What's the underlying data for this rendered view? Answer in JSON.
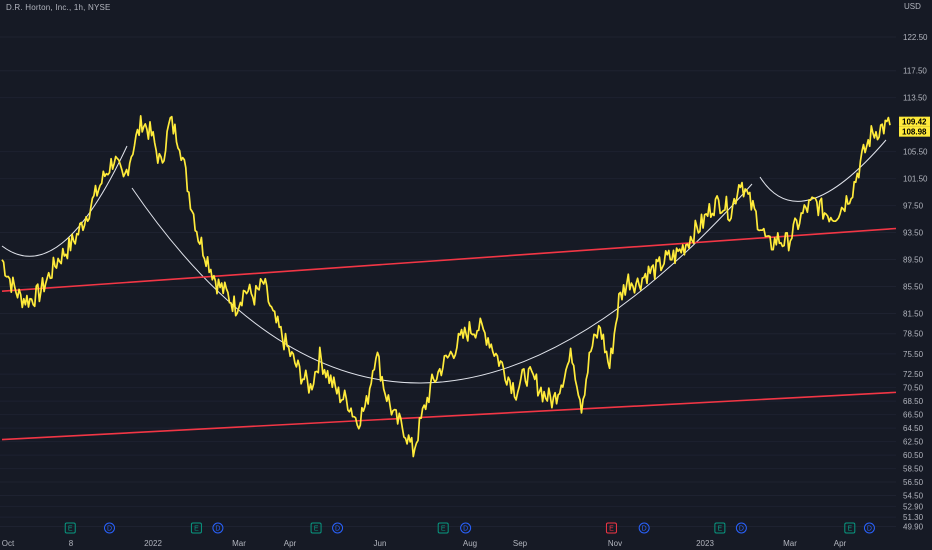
{
  "header": {
    "title": "D.R. Horton, Inc., 1h, NYSE"
  },
  "colors": {
    "background": "#161a25",
    "price": "#ffeb3b",
    "channel": "#f23645",
    "arcs": "#e0e3eb",
    "axis_text": "#b2b5be",
    "earnings": "#089981",
    "earnings_alt": "#f23645",
    "dividend": "#2962ff"
  },
  "chart_data": {
    "type": "line",
    "title": "D.R. Horton, Inc., 1h, NYSE",
    "ylabel": "USD",
    "ylim": [
      48.5,
      126.5
    ],
    "x_tick_labels": [
      "Oct",
      "8",
      "2022",
      "Mar",
      "Apr",
      "Jun",
      "Aug",
      "Sep",
      "Nov",
      "2023",
      "Mar",
      "Apr"
    ],
    "y_tick_labels": [
      "122.50",
      "117.50",
      "113.50",
      "109.42",
      "108.98",
      "105.50",
      "101.50",
      "97.50",
      "93.50",
      "89.50",
      "85.50",
      "81.50",
      "78.50",
      "75.50",
      "72.50",
      "70.50",
      "68.50",
      "66.50",
      "64.50",
      "62.50",
      "60.50",
      "58.50",
      "56.50",
      "54.50",
      "52.90",
      "51.30",
      "49.90"
    ],
    "series": [
      {
        "values": [
          89.5,
          86.0,
          83.8,
          83.5,
          84.5,
          87.0,
          89.5,
          91.0,
          93.0,
          96.0,
          99.0,
          102.0,
          104.5,
          101.0,
          106.0,
          110.0,
          108.0,
          103.5,
          110.0,
          107.0,
          99.5,
          93.0,
          89.5,
          86.0,
          84.5,
          82.5,
          85.0,
          84.0,
          86.0,
          81.0,
          78.0,
          75.0,
          72.5,
          70.5,
          75.0,
          72.0,
          69.5,
          68.5,
          65.5,
          68.0,
          76.0,
          70.0,
          66.0,
          64.5,
          61.0,
          66.5,
          71.0,
          73.5,
          75.5,
          77.5,
          79.0,
          79.5,
          78.0,
          75.0,
          72.5,
          70.0,
          72.5,
          71.5,
          69.5,
          68.5,
          72.0,
          75.5,
          68.0,
          76.0,
          79.5,
          73.5,
          83.5,
          86.5,
          86.0,
          87.5,
          88.0,
          89.5,
          90.0,
          91.5,
          93.5,
          95.0,
          97.5,
          98.0,
          96.5,
          101.5,
          98.0,
          95.0,
          91.5,
          92.5,
          92.0,
          94.5,
          97.0,
          98.0,
          96.5,
          96.0,
          97.5,
          100.0,
          104.5,
          108.0,
          109.0,
          109.42
        ]
      }
    ],
    "channel_lines": [
      {
        "x": [
          0,
          95
        ],
        "y": [
          84.8,
          94.1
        ]
      },
      {
        "x": [
          0,
          95
        ],
        "y": [
          62.8,
          69.8
        ]
      }
    ],
    "last_price": 109.42,
    "prev_close": 108.98,
    "events": [
      {
        "label": "E",
        "kind": "earnings",
        "x": 7.3
      },
      {
        "label": "D",
        "kind": "dividend",
        "x": 11.5
      },
      {
        "label": "E",
        "kind": "earnings",
        "x": 20.8
      },
      {
        "label": "D",
        "kind": "dividend",
        "x": 23.1
      },
      {
        "label": "E",
        "kind": "earnings",
        "x": 33.6
      },
      {
        "label": "D",
        "kind": "dividend",
        "x": 35.9
      },
      {
        "label": "E",
        "kind": "earnings",
        "x": 47.2
      },
      {
        "label": "D",
        "kind": "dividend",
        "x": 49.6
      },
      {
        "label": "E",
        "kind": "earnings_alt",
        "x": 65.2
      },
      {
        "label": "D",
        "kind": "dividend",
        "x": 68.7
      },
      {
        "label": "E",
        "kind": "earnings",
        "x": 76.8
      },
      {
        "label": "D",
        "kind": "dividend",
        "x": 79.1
      },
      {
        "label": "E",
        "kind": "earnings",
        "x": 90.7
      },
      {
        "label": "D",
        "kind": "dividend",
        "x": 92.8
      }
    ]
  }
}
